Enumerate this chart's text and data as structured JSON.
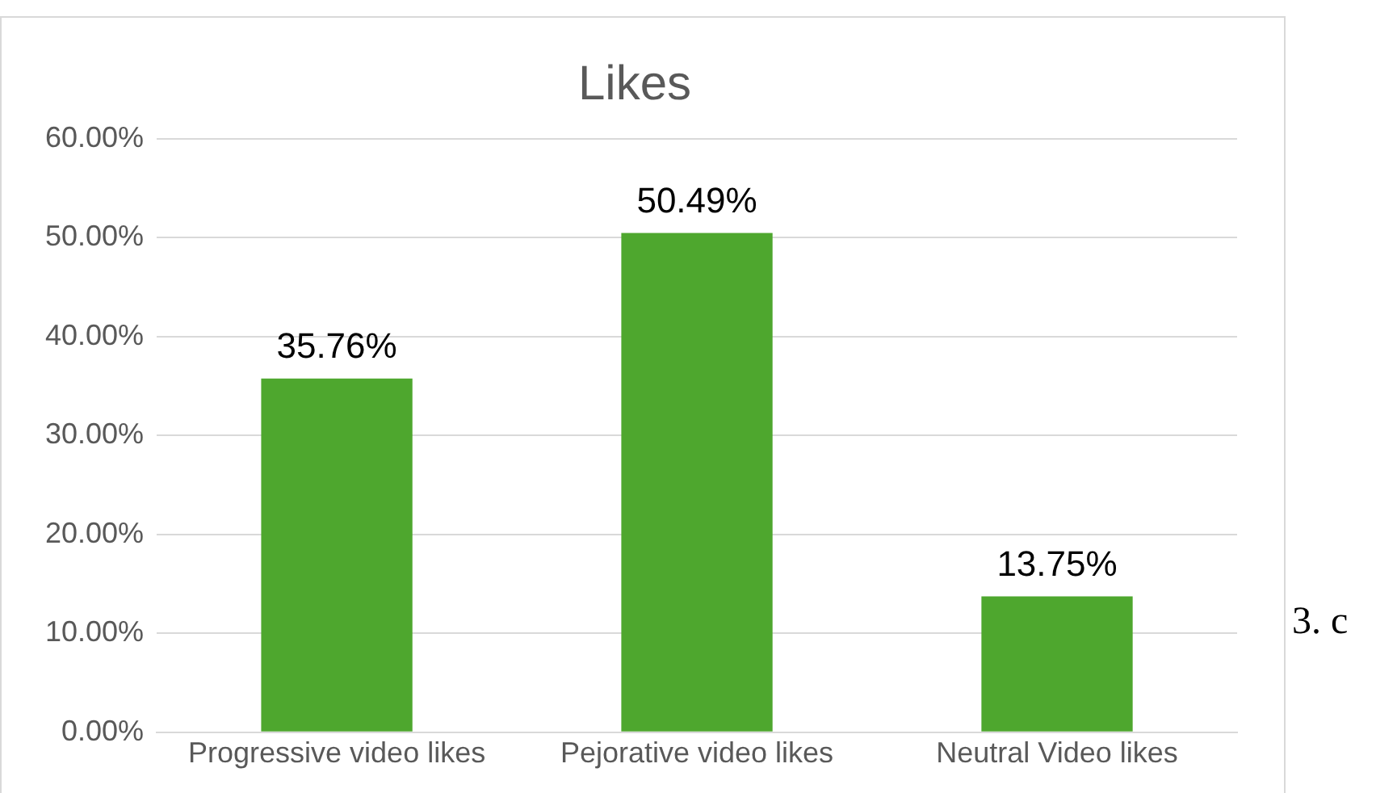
{
  "chart_data": {
    "type": "bar",
    "title": "Likes",
    "categories": [
      "Progressive video likes",
      "Pejorative video likes",
      "Neutral Video likes"
    ],
    "values": [
      35.76,
      50.49,
      13.75
    ],
    "color": "#4ea72e",
    "value_labels": [
      "35.76%",
      "50.49%",
      "13.75%"
    ],
    "ylim": [
      0,
      60
    ],
    "yticks": [
      {
        "value": 0,
        "label": "0.00%"
      },
      {
        "value": 10,
        "label": "10.00%"
      },
      {
        "value": 20,
        "label": "20.00%"
      },
      {
        "value": 30,
        "label": "30.00%"
      },
      {
        "value": 40,
        "label": "40.00%"
      },
      {
        "value": 50,
        "label": "50.00%"
      },
      {
        "value": 60,
        "label": "60.00%"
      }
    ],
    "grid": "y",
    "legend": false,
    "annotations": [
      "3. c"
    ]
  }
}
